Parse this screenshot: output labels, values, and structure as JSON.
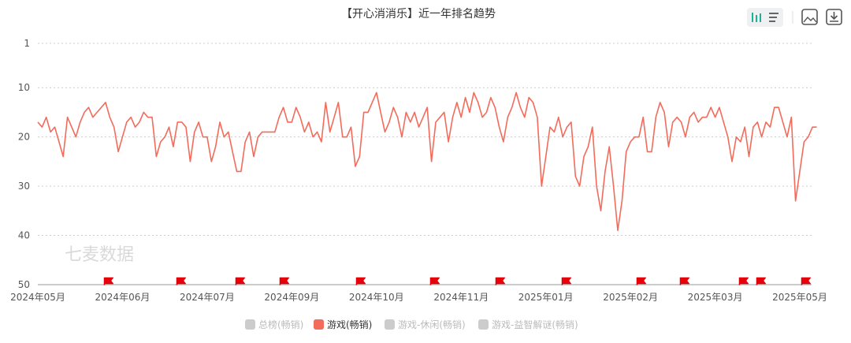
{
  "chart_data": {
    "type": "line",
    "title": "【开心消消乐】近一年排名趋势",
    "watermark": "七麦数据",
    "categories": [
      "2024年05月",
      null,
      null,
      null,
      null,
      null,
      null,
      null,
      null,
      null,
      null,
      null,
      null,
      null,
      null,
      null,
      null,
      null,
      null,
      null,
      "2024年06月",
      null,
      null,
      null,
      null,
      null,
      null,
      null,
      null,
      null,
      null,
      null,
      null,
      null,
      null,
      null,
      null,
      null,
      null,
      null,
      "2024年07月",
      null,
      null,
      null,
      null,
      null,
      null,
      null,
      null,
      null,
      null,
      null,
      null,
      null,
      null,
      null,
      null,
      null,
      null,
      null,
      "2024年09月",
      null,
      null,
      null,
      null,
      null,
      null,
      null,
      null,
      null,
      null,
      null,
      null,
      null,
      null,
      null,
      null,
      null,
      null,
      null,
      "2024年10月",
      null,
      null,
      null,
      null,
      null,
      null,
      null,
      null,
      null,
      null,
      null,
      null,
      null,
      null,
      null,
      null,
      null,
      null,
      null,
      "2024年11月",
      null,
      null,
      null,
      null,
      null,
      null,
      null,
      null,
      null,
      null,
      null,
      null,
      null,
      null,
      null,
      null,
      null,
      null,
      null,
      "2025年01月",
      null,
      null,
      null,
      null,
      null,
      null,
      null,
      null,
      null,
      null,
      null,
      null,
      null,
      null,
      null,
      null,
      null,
      null,
      null,
      "2025年02月",
      null,
      null,
      null,
      null,
      null,
      null,
      null,
      null,
      null,
      null,
      null,
      null,
      null,
      null,
      null,
      null,
      null,
      null,
      null,
      "2025年03月",
      null,
      null,
      null,
      null,
      null,
      null,
      null,
      null,
      null,
      null,
      null,
      null,
      null,
      null,
      null,
      null,
      null,
      null,
      null,
      "2025年05月",
      null,
      null,
      null,
      null
    ],
    "series": [
      {
        "name": "游戏(畅销)",
        "color": "#f26b5b",
        "values": [
          17,
          18,
          16,
          19,
          18,
          21,
          24,
          16,
          18,
          20,
          17,
          15,
          14,
          16,
          15,
          14,
          13,
          16,
          18,
          23,
          20,
          17,
          16,
          18,
          17,
          15,
          16,
          16,
          24,
          21,
          20,
          18,
          22,
          17,
          17,
          18,
          25,
          19,
          17,
          20,
          20,
          25,
          22,
          17,
          20,
          19,
          23,
          27,
          27,
          21,
          19,
          24,
          20,
          19,
          19,
          19,
          19,
          16,
          14,
          17,
          17,
          14,
          16,
          19,
          17,
          20,
          19,
          21,
          13,
          19,
          16,
          13,
          20,
          20,
          18,
          26,
          24,
          15,
          15,
          13,
          11,
          15,
          19,
          17,
          14,
          16,
          20,
          15,
          17,
          15,
          18,
          16,
          14,
          25,
          17,
          16,
          15,
          21,
          16,
          13,
          16,
          12,
          15,
          11,
          13,
          16,
          15,
          12,
          14,
          18,
          21,
          16,
          14,
          11,
          14,
          16,
          12,
          13,
          16,
          30,
          24,
          18,
          19,
          16,
          20,
          18,
          17,
          28,
          30,
          24,
          22,
          18,
          30,
          35,
          27,
          22,
          30,
          39,
          33,
          23,
          21,
          20,
          20,
          16,
          23,
          23,
          16,
          13,
          15,
          22,
          17,
          16,
          17,
          20,
          16,
          15,
          17,
          16,
          16,
          14,
          16,
          14,
          17,
          20,
          25,
          20,
          21,
          18,
          24,
          18,
          17,
          20,
          17,
          18,
          14,
          14,
          17,
          20,
          16,
          33,
          27,
          21,
          20,
          18,
          18
        ]
      }
    ],
    "inactive_legend": [
      "总榜(畅销)",
      "游戏-休闲(畅销)",
      "游戏-益智解谜(畅销)"
    ],
    "inactive_color": "#cccccc",
    "ylim": [
      50,
      1
    ],
    "yticks": [
      1,
      10,
      20,
      30,
      40,
      50
    ],
    "grid": true
  }
}
